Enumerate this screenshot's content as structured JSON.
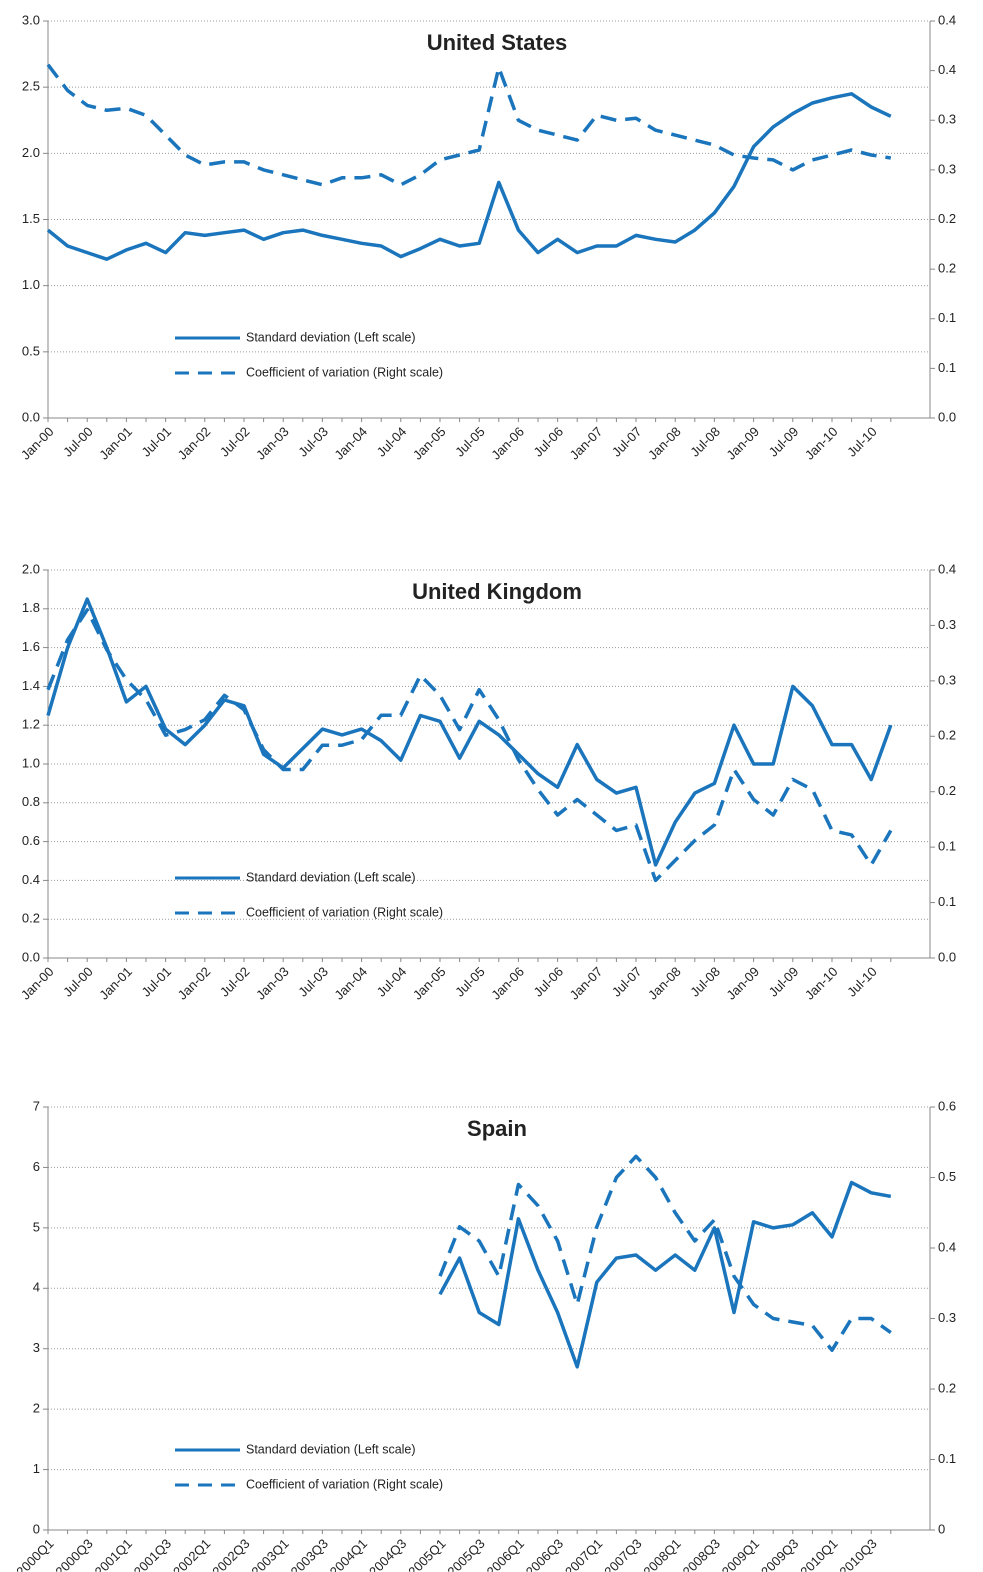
{
  "chart_data": [
    {
      "type": "line",
      "title": "United States",
      "legend": "lower left",
      "grid": true,
      "categories": [
        "Jan-00",
        null,
        "Jul-00",
        null,
        "Jan-01",
        null,
        "Jul-01",
        null,
        "Jan-02",
        null,
        "Jul-02",
        null,
        "Jan-03",
        null,
        "Jul-03",
        null,
        "Jan-04",
        null,
        "Jul-04",
        null,
        "Jan-05",
        null,
        "Jul-05",
        null,
        "Jan-06",
        null,
        "Jul-06",
        null,
        "Jan-07",
        null,
        "Jul-07",
        null,
        "Jan-08",
        null,
        "Jul-08",
        null,
        "Jan-09",
        null,
        "Jul-09",
        null,
        "Jan-10",
        null,
        "Jul-10",
        null
      ],
      "ylim": [
        0,
        3
      ],
      "yticks": [
        {
          "value": 0,
          "label": "0.0"
        },
        0.5,
        {
          "value": 1,
          "label": "1.0"
        },
        1.5,
        {
          "value": 2,
          "label": "2.0"
        },
        2.5,
        {
          "value": 3,
          "label": "3.0"
        }
      ],
      "y2lim": [
        0,
        0.4
      ],
      "y2ticks": [
        {
          "value": 0,
          "label": "0.0"
        },
        {
          "value": 0.05,
          "label": "0.1"
        },
        0.1,
        {
          "value": 0.15,
          "label": "0.2"
        },
        0.2,
        {
          "value": 0.25,
          "label": "0.3"
        },
        0.3,
        {
          "value": 0.35,
          "label": "0.4"
        },
        0.4
      ],
      "series": [
        {
          "name": "Standard deviation (Left scale)",
          "color": "#1a75bc",
          "dash": false,
          "axis": "y",
          "values": [
            1.42,
            1.3,
            1.25,
            1.2,
            1.27,
            1.32,
            1.25,
            1.4,
            1.38,
            1.4,
            1.42,
            1.35,
            1.4,
            1.42,
            1.38,
            1.35,
            1.32,
            1.3,
            1.22,
            1.28,
            1.35,
            1.3,
            1.32,
            1.78,
            1.42,
            1.25,
            1.35,
            1.25,
            1.3,
            1.3,
            1.38,
            1.35,
            1.33,
            1.42,
            1.55,
            1.75,
            2.05,
            2.2,
            2.3,
            2.38,
            2.42,
            2.45,
            2.35,
            2.28
          ]
        },
        {
          "name": "Coefficient of variation (Right scale)",
          "color": "#1a75bc",
          "dash": true,
          "axis": "y2",
          "values": [
            0.356,
            0.33,
            0.315,
            0.31,
            0.312,
            0.305,
            0.285,
            0.265,
            0.255,
            0.258,
            0.258,
            0.25,
            0.245,
            0.24,
            0.235,
            0.242,
            0.242,
            0.245,
            0.235,
            0.245,
            0.26,
            0.265,
            0.27,
            0.353,
            0.3,
            0.29,
            0.285,
            0.28,
            0.305,
            0.3,
            0.302,
            0.29,
            0.285,
            0.28,
            0.275,
            0.265,
            0.262,
            0.26,
            0.25,
            0.26,
            0.265,
            0.27,
            0.265,
            0.262
          ]
        }
      ]
    },
    {
      "type": "line",
      "title": "United Kingdom",
      "legend": "lower left",
      "grid": true,
      "categories": [
        "Jan-00",
        null,
        "Jul-00",
        null,
        "Jan-01",
        null,
        "Jul-01",
        null,
        "Jan-02",
        null,
        "Jul-02",
        null,
        "Jan-03",
        null,
        "Jul-03",
        null,
        "Jan-04",
        null,
        "Jul-04",
        null,
        "Jan-05",
        null,
        "Jul-05",
        null,
        "Jan-06",
        null,
        "Jul-06",
        null,
        "Jan-07",
        null,
        "Jul-07",
        null,
        "Jan-08",
        null,
        "Jul-08",
        null,
        "Jan-09",
        null,
        "Jul-09",
        null,
        "Jan-10",
        null,
        "Jul-10",
        null
      ],
      "ylim": [
        0,
        2
      ],
      "yticks": [
        {
          "value": 0,
          "label": "0.0"
        },
        0.2,
        0.4,
        0.6,
        0.8,
        {
          "value": 1,
          "label": "1.0"
        },
        1.2,
        1.4,
        1.6,
        1.8,
        {
          "value": 2,
          "label": "2.0"
        }
      ],
      "y2lim": [
        0,
        0.35
      ],
      "y2ticks": [
        {
          "value": 0,
          "label": "0.0"
        },
        {
          "value": 0.05,
          "label": "0.1"
        },
        0.1,
        {
          "value": 0.15,
          "label": "0.2"
        },
        0.2,
        {
          "value": 0.25,
          "label": "0.3"
        },
        0.3,
        {
          "value": 0.35,
          "label": "0.4"
        }
      ],
      "series": [
        {
          "name": "Standard deviation (Left scale)",
          "color": "#1a75bc",
          "dash": false,
          "axis": "y",
          "values": [
            1.25,
            1.6,
            1.85,
            1.6,
            1.32,
            1.4,
            1.18,
            1.1,
            1.2,
            1.33,
            1.3,
            1.05,
            0.98,
            1.08,
            1.18,
            1.15,
            1.18,
            1.12,
            1.02,
            1.25,
            1.22,
            1.03,
            1.22,
            1.15,
            1.05,
            0.95,
            0.88,
            1.1,
            0.92,
            0.85,
            0.88,
            0.48,
            0.7,
            0.85,
            0.9,
            1.2,
            1.0,
            1.0,
            1.4,
            1.3,
            1.1,
            1.1,
            0.92,
            1.2
          ]
        },
        {
          "name": "Coefficient of variation (Right scale)",
          "color": "#1a75bc",
          "dash": true,
          "axis": "y2",
          "values": [
            0.242,
            0.287,
            0.314,
            0.278,
            0.251,
            0.233,
            0.201,
            0.206,
            0.215,
            0.237,
            0.224,
            0.188,
            0.17,
            0.17,
            0.192,
            0.192,
            0.197,
            0.219,
            0.219,
            0.255,
            0.237,
            0.206,
            0.242,
            0.215,
            0.179,
            0.152,
            0.129,
            0.143,
            0.129,
            0.115,
            0.12,
            0.07,
            0.088,
            0.106,
            0.12,
            0.17,
            0.143,
            0.129,
            0.161,
            0.152,
            0.115,
            0.111,
            0.084,
            0.115
          ]
        }
      ]
    },
    {
      "type": "line",
      "title": "Spain",
      "legend": "lower left",
      "grid": true,
      "categories": [
        "2000Q1",
        null,
        "2000Q3",
        null,
        "2001Q1",
        null,
        "2001Q3",
        null,
        "2002Q1",
        null,
        "2002Q3",
        null,
        "2003Q1",
        null,
        "2003Q3",
        null,
        "2004Q1",
        null,
        "2004Q3",
        null,
        "2005Q1",
        null,
        "2005Q3",
        null,
        "2006Q1",
        null,
        "2006Q3",
        null,
        "2007Q1",
        null,
        "2007Q3",
        null,
        "2008Q1",
        null,
        "2008Q3",
        null,
        "2009Q1",
        null,
        "2009Q3",
        null,
        "2010Q1",
        null,
        "2010Q3",
        null
      ],
      "ylim": [
        0,
        7
      ],
      "yticks": [
        0,
        1,
        2,
        3,
        4,
        5,
        6,
        7
      ],
      "y2lim": [
        0,
        0.6
      ],
      "y2ticks": [
        0,
        0.1,
        0.2,
        0.3,
        0.4,
        0.5,
        0.6
      ],
      "series": [
        {
          "name": "Standard deviation (Left scale)",
          "color": "#1a75bc",
          "dash": false,
          "axis": "y",
          "values": [
            null,
            null,
            null,
            null,
            null,
            null,
            null,
            null,
            null,
            null,
            null,
            null,
            null,
            null,
            null,
            null,
            null,
            null,
            null,
            null,
            3.9,
            4.5,
            3.6,
            3.4,
            5.15,
            4.3,
            3.6,
            2.7,
            4.1,
            4.5,
            4.55,
            4.3,
            4.55,
            4.3,
            5.0,
            3.6,
            5.1,
            5.0,
            5.05,
            5.25,
            4.85,
            5.75,
            5.58,
            5.52
          ]
        },
        {
          "name": "Coefficient of variation (Right scale)",
          "color": "#1a75bc",
          "dash": true,
          "axis": "y2",
          "values": [
            null,
            null,
            null,
            null,
            null,
            null,
            null,
            null,
            null,
            null,
            null,
            null,
            null,
            null,
            null,
            null,
            null,
            null,
            null,
            null,
            0.36,
            0.43,
            0.41,
            0.36,
            0.49,
            0.46,
            0.41,
            0.32,
            0.43,
            0.5,
            0.53,
            0.5,
            0.45,
            0.41,
            0.44,
            0.36,
            0.32,
            0.3,
            0.295,
            0.29,
            0.255,
            0.3,
            0.3,
            0.28
          ]
        }
      ]
    }
  ]
}
